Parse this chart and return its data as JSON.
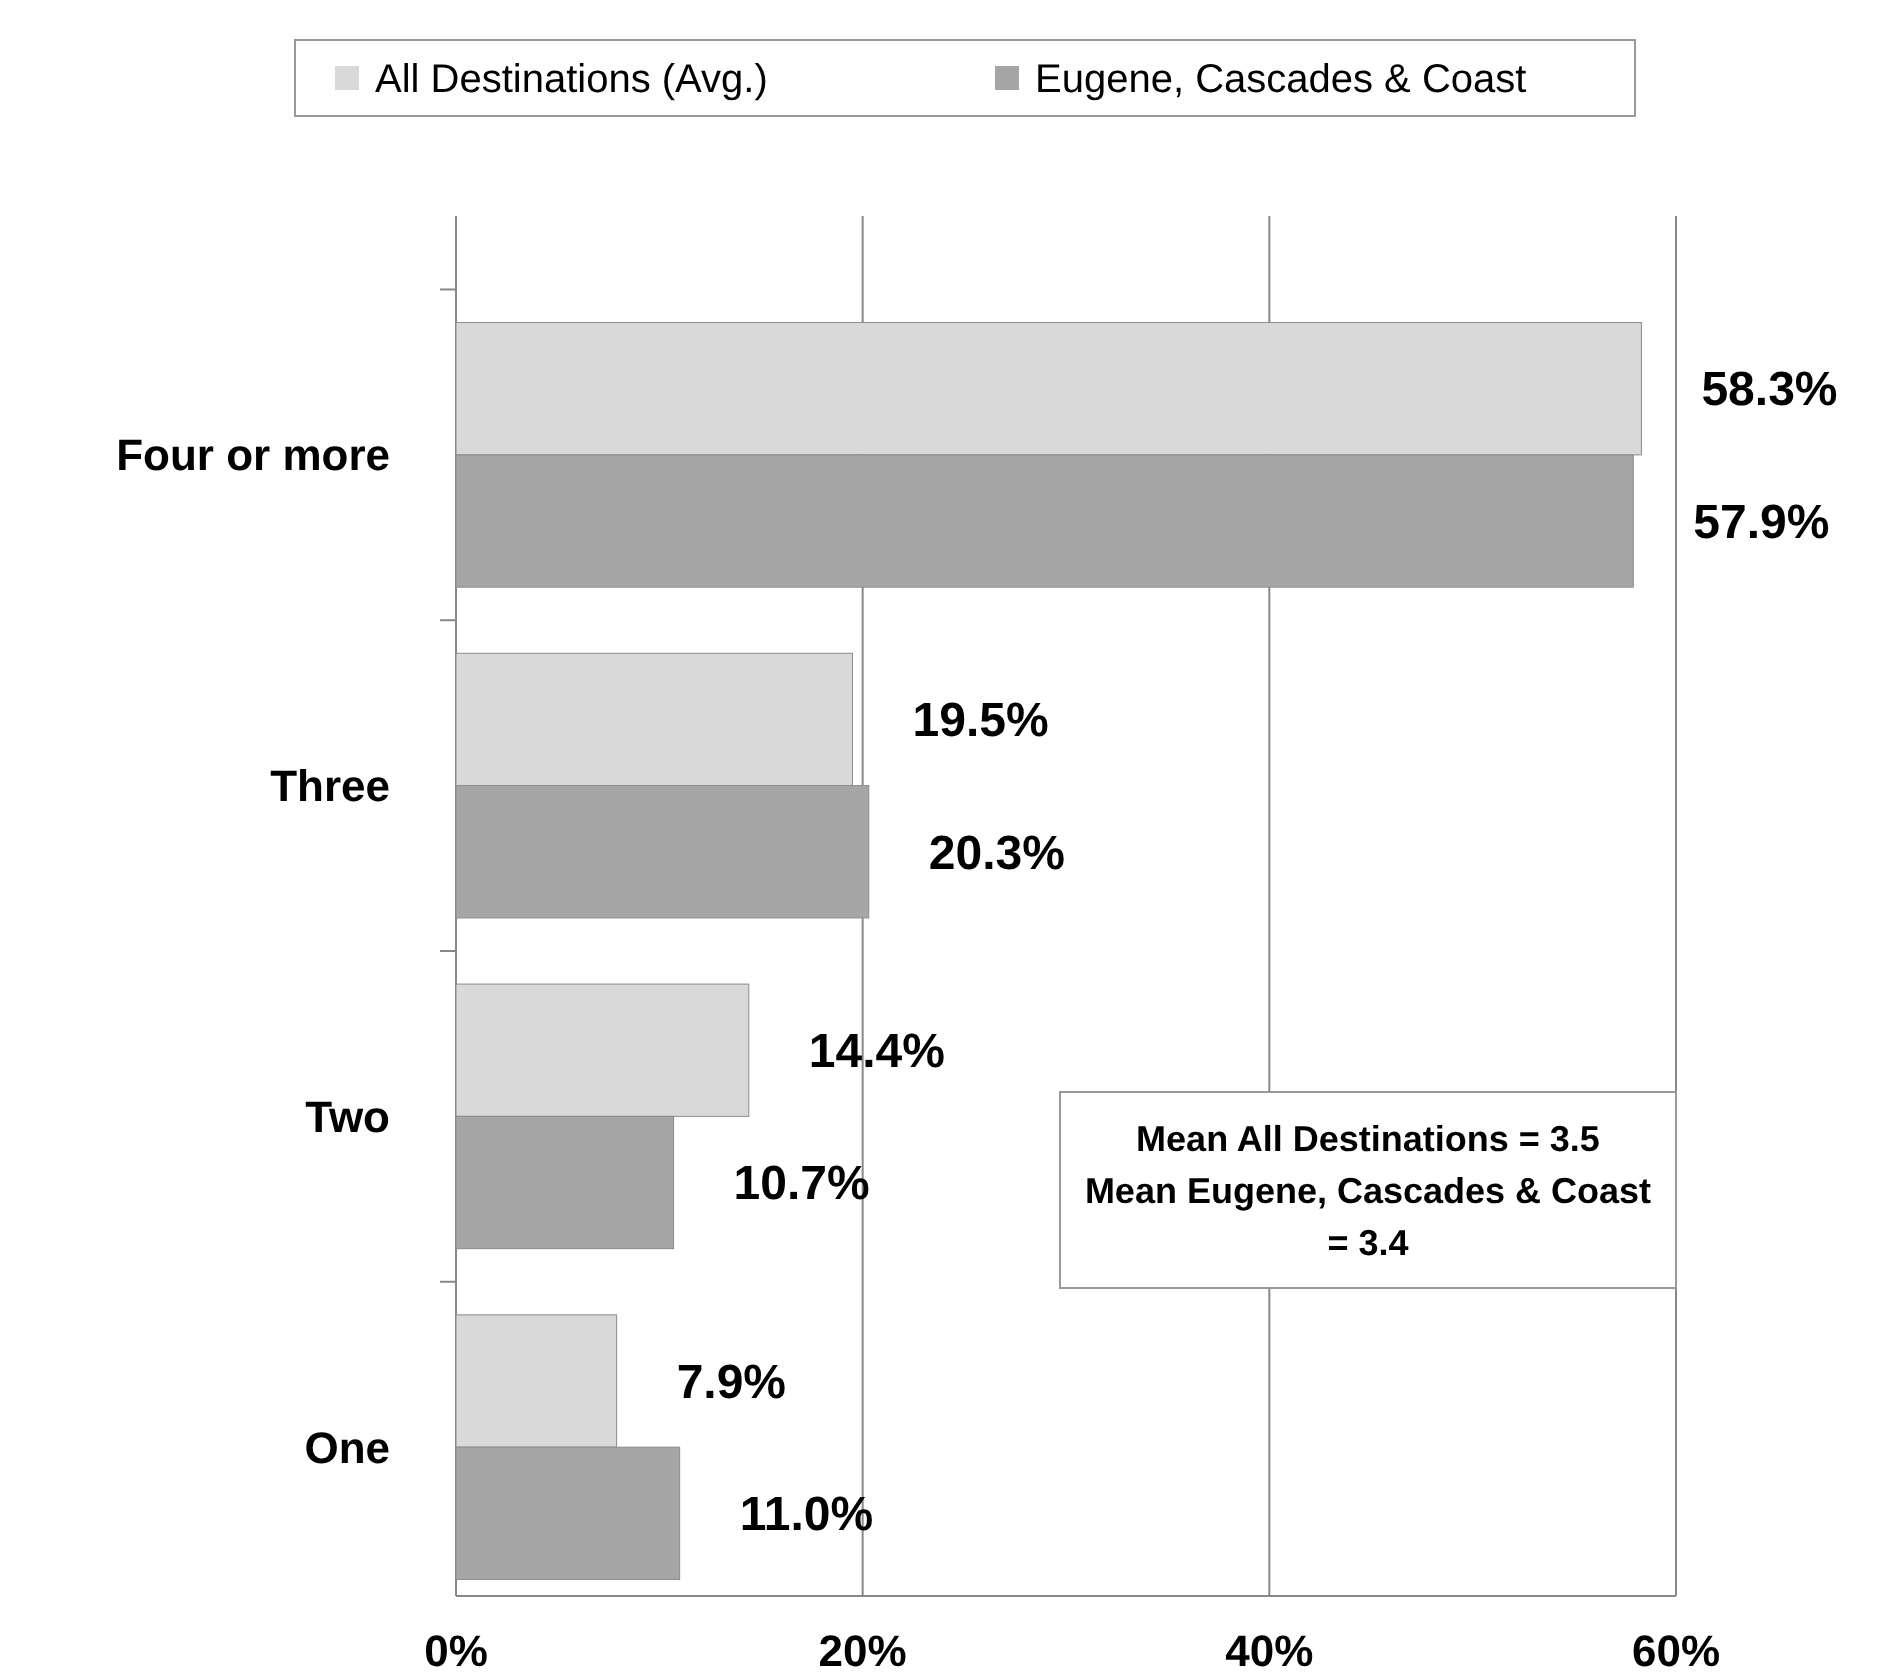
{
  "chart_data": {
    "type": "bar",
    "orientation": "horizontal",
    "categories": [
      "Four or more",
      "Three",
      "Two",
      "One"
    ],
    "series": [
      {
        "name": "All Destinations (Avg.)",
        "color": "#d9d9d9",
        "values": [
          58.3,
          19.5,
          14.4,
          7.9
        ],
        "value_labels": [
          "58.3%",
          "19.5%",
          "14.4%",
          "7.9%"
        ]
      },
      {
        "name": "Eugene, Cascades & Coast",
        "color": "#a6a6a6",
        "values": [
          57.9,
          20.3,
          10.7,
          11.0
        ],
        "value_labels": [
          "57.9%",
          "20.3%",
          "10.7%",
          "11.0%"
        ]
      }
    ],
    "xlim": [
      0,
      60
    ],
    "xticks": [
      {
        "value": 0,
        "label": "0%"
      },
      {
        "value": 20,
        "label": "20%"
      },
      {
        "value": 40,
        "label": "40%"
      },
      {
        "value": 60,
        "label": "60%"
      }
    ],
    "grid": "x",
    "legend": "top",
    "annotations": [
      "Mean All Destinations = 3.5 Mean Eugene, Cascades & Coast = 3.4"
    ]
  }
}
